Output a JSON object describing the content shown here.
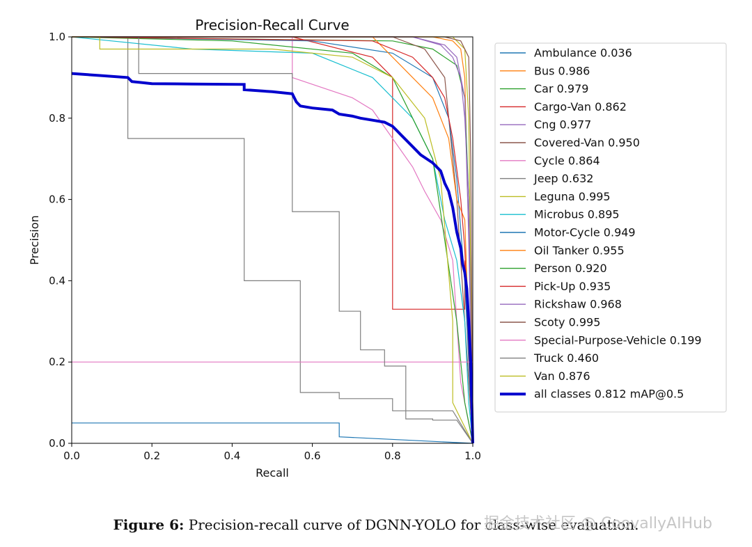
{
  "caption": {
    "label": "Figure 6:",
    "text": "Precision-recall curve of DGNN-YOLO for class-wise evaluation."
  },
  "watermark": "掘金技术社区 @ CoovallyAIHub",
  "chart_data": {
    "type": "line",
    "title": "Precision-Recall Curve",
    "xlabel": "Recall",
    "ylabel": "Precision",
    "xlim": [
      0,
      1
    ],
    "ylim": [
      0,
      1
    ],
    "xticks": [
      "0.0",
      "0.2",
      "0.4",
      "0.6",
      "0.8",
      "1.0"
    ],
    "yticks": [
      "0.0",
      "0.2",
      "0.4",
      "0.6",
      "0.8",
      "1.0"
    ],
    "legend_position": "outside-right",
    "series": [
      {
        "name": "Ambulance 0.036",
        "color": "#1f77b4",
        "points": [
          [
            0,
            0.05
          ],
          [
            0.667,
            0.05
          ],
          [
            0.667,
            0.016
          ],
          [
            1,
            0
          ]
        ]
      },
      {
        "name": "Bus 0.986",
        "color": "#ff7f0e",
        "points": [
          [
            0,
            1
          ],
          [
            0.9,
            1
          ],
          [
            0.95,
            0.99
          ],
          [
            0.97,
            0.97
          ],
          [
            0.98,
            0.9
          ],
          [
            0.985,
            0.7
          ],
          [
            0.99,
            0.6
          ],
          [
            1,
            0
          ]
        ]
      },
      {
        "name": "Car 0.979",
        "color": "#2ca02c",
        "points": [
          [
            0,
            1
          ],
          [
            0.8,
            0.99
          ],
          [
            0.9,
            0.97
          ],
          [
            0.96,
            0.93
          ],
          [
            0.98,
            0.85
          ],
          [
            0.99,
            0.6
          ],
          [
            0.995,
            0.3
          ],
          [
            1,
            0
          ]
        ]
      },
      {
        "name": "Cargo-Van 0.862",
        "color": "#d62728",
        "points": [
          [
            0,
            1
          ],
          [
            0.55,
            1
          ],
          [
            0.75,
            0.95
          ],
          [
            0.8,
            0.9
          ],
          [
            0.8,
            0.33
          ],
          [
            0.98,
            0.33
          ],
          [
            0.98,
            0.45
          ],
          [
            1,
            0
          ]
        ]
      },
      {
        "name": "Cng 0.977",
        "color": "#9467bd",
        "points": [
          [
            0,
            1
          ],
          [
            0.85,
            1
          ],
          [
            0.93,
            0.98
          ],
          [
            0.96,
            0.95
          ],
          [
            0.98,
            0.85
          ],
          [
            0.99,
            0.5
          ],
          [
            1,
            0
          ]
        ]
      },
      {
        "name": "Covered-Van 0.950",
        "color": "#8c564b",
        "points": [
          [
            0,
            1
          ],
          [
            0.8,
            1
          ],
          [
            0.88,
            0.97
          ],
          [
            0.93,
            0.9
          ],
          [
            0.96,
            0.6
          ],
          [
            0.97,
            0.45
          ],
          [
            0.98,
            0.3
          ],
          [
            1,
            0
          ]
        ]
      },
      {
        "name": "Cycle 0.864",
        "color": "#e377c2",
        "points": [
          [
            0,
            1
          ],
          [
            0.55,
            1
          ],
          [
            0.55,
            0.9
          ],
          [
            0.7,
            0.85
          ],
          [
            0.75,
            0.82
          ],
          [
            0.8,
            0.75
          ],
          [
            0.85,
            0.68
          ],
          [
            0.88,
            0.62
          ],
          [
            0.92,
            0.55
          ],
          [
            0.95,
            0.45
          ],
          [
            0.97,
            0.15
          ],
          [
            1,
            0
          ]
        ]
      },
      {
        "name": "Jeep 0.632",
        "color": "#7f7f7f",
        "points": [
          [
            0,
            1
          ],
          [
            0.14,
            1
          ],
          [
            0.14,
            0.75
          ],
          [
            0.43,
            0.75
          ],
          [
            0.43,
            0.4
          ],
          [
            0.57,
            0.4
          ],
          [
            0.57,
            0.125
          ],
          [
            0.667,
            0.125
          ],
          [
            0.667,
            0.11
          ],
          [
            0.8,
            0.11
          ],
          [
            0.8,
            0.08
          ],
          [
            0.95,
            0.08
          ],
          [
            1,
            0
          ]
        ]
      },
      {
        "name": "Leguna 0.995",
        "color": "#bcbd22",
        "points": [
          [
            0,
            1
          ],
          [
            0.95,
            1
          ],
          [
            0.98,
            0.97
          ],
          [
            0.99,
            0.8
          ],
          [
            0.995,
            0.4
          ],
          [
            1,
            0
          ]
        ]
      },
      {
        "name": "Microbus 0.895",
        "color": "#17becf",
        "points": [
          [
            0,
            1
          ],
          [
            0.3,
            0.97
          ],
          [
            0.6,
            0.96
          ],
          [
            0.75,
            0.9
          ],
          [
            0.85,
            0.8
          ],
          [
            0.9,
            0.7
          ],
          [
            0.93,
            0.55
          ],
          [
            0.96,
            0.45
          ],
          [
            0.98,
            0.3
          ],
          [
            0.99,
            0.1
          ],
          [
            1,
            0
          ]
        ]
      },
      {
        "name": "Motor-Cycle 0.949",
        "color": "#1f77b4",
        "points": [
          [
            0,
            1
          ],
          [
            0.6,
            0.99
          ],
          [
            0.8,
            0.96
          ],
          [
            0.9,
            0.9
          ],
          [
            0.94,
            0.8
          ],
          [
            0.96,
            0.65
          ],
          [
            0.98,
            0.4
          ],
          [
            0.99,
            0.2
          ],
          [
            1,
            0
          ]
        ]
      },
      {
        "name": "Oil Tanker 0.955",
        "color": "#ff7f0e",
        "points": [
          [
            0,
            1
          ],
          [
            0.75,
            1
          ],
          [
            0.8,
            0.95
          ],
          [
            0.85,
            0.9
          ],
          [
            0.9,
            0.85
          ],
          [
            0.94,
            0.75
          ],
          [
            0.96,
            0.6
          ],
          [
            0.98,
            0.55
          ],
          [
            1,
            0
          ]
        ]
      },
      {
        "name": "Person 0.920",
        "color": "#2ca02c",
        "points": [
          [
            0,
            1
          ],
          [
            0.4,
            0.99
          ],
          [
            0.7,
            0.96
          ],
          [
            0.8,
            0.9
          ],
          [
            0.85,
            0.8
          ],
          [
            0.9,
            0.7
          ],
          [
            0.93,
            0.5
          ],
          [
            0.96,
            0.3
          ],
          [
            0.98,
            0.1
          ],
          [
            1,
            0
          ]
        ]
      },
      {
        "name": "Pick-Up 0.935",
        "color": "#d62728",
        "points": [
          [
            0,
            1
          ],
          [
            0.75,
            0.99
          ],
          [
            0.85,
            0.95
          ],
          [
            0.9,
            0.9
          ],
          [
            0.93,
            0.85
          ],
          [
            0.95,
            0.75
          ],
          [
            0.97,
            0.6
          ],
          [
            0.98,
            0.48
          ],
          [
            1,
            0
          ]
        ]
      },
      {
        "name": "Rickshaw 0.968",
        "color": "#9467bd",
        "points": [
          [
            0,
            1
          ],
          [
            0.85,
            1
          ],
          [
            0.92,
            0.98
          ],
          [
            0.95,
            0.95
          ],
          [
            0.97,
            0.9
          ],
          [
            0.98,
            0.8
          ],
          [
            0.99,
            0.6
          ],
          [
            1,
            0
          ]
        ]
      },
      {
        "name": "Scoty 0.995",
        "color": "#8c564b",
        "points": [
          [
            0,
            1
          ],
          [
            0.93,
            1
          ],
          [
            0.97,
            0.99
          ],
          [
            0.99,
            0.95
          ],
          [
            0.995,
            0.7
          ],
          [
            1,
            0
          ]
        ]
      },
      {
        "name": "Special-Purpose-Vehicle 0.199",
        "color": "#e377c2",
        "points": [
          [
            0,
            0.2
          ],
          [
            1,
            0.2
          ]
        ]
      },
      {
        "name": "Truck 0.460",
        "color": "#7f7f7f",
        "points": [
          [
            0,
            1
          ],
          [
            0.167,
            1
          ],
          [
            0.167,
            0.91
          ],
          [
            0.55,
            0.91
          ],
          [
            0.55,
            0.57
          ],
          [
            0.667,
            0.57
          ],
          [
            0.667,
            0.325
          ],
          [
            0.72,
            0.325
          ],
          [
            0.72,
            0.23
          ],
          [
            0.78,
            0.23
          ],
          [
            0.78,
            0.19
          ],
          [
            0.833,
            0.19
          ],
          [
            0.833,
            0.06
          ],
          [
            0.9,
            0.06
          ],
          [
            0.9,
            0.057
          ],
          [
            0.96,
            0.057
          ],
          [
            1,
            0
          ]
        ]
      },
      {
        "name": "Van 0.876",
        "color": "#bcbd22",
        "points": [
          [
            0,
            1
          ],
          [
            0.07,
            1
          ],
          [
            0.07,
            0.97
          ],
          [
            0.5,
            0.97
          ],
          [
            0.7,
            0.95
          ],
          [
            0.8,
            0.9
          ],
          [
            0.88,
            0.8
          ],
          [
            0.92,
            0.65
          ],
          [
            0.95,
            0.3
          ],
          [
            0.95,
            0.1
          ],
          [
            1,
            0
          ]
        ]
      },
      {
        "name": "all classes 0.812 mAP@0.5",
        "color": "#0000cd",
        "bold": true,
        "points": [
          [
            0,
            0.91
          ],
          [
            0.07,
            0.905
          ],
          [
            0.14,
            0.9
          ],
          [
            0.15,
            0.89
          ],
          [
            0.17,
            0.888
          ],
          [
            0.2,
            0.885
          ],
          [
            0.3,
            0.884
          ],
          [
            0.43,
            0.883
          ],
          [
            0.43,
            0.87
          ],
          [
            0.5,
            0.865
          ],
          [
            0.55,
            0.86
          ],
          [
            0.56,
            0.84
          ],
          [
            0.57,
            0.83
          ],
          [
            0.6,
            0.825
          ],
          [
            0.65,
            0.82
          ],
          [
            0.667,
            0.81
          ],
          [
            0.7,
            0.805
          ],
          [
            0.72,
            0.8
          ],
          [
            0.75,
            0.795
          ],
          [
            0.78,
            0.79
          ],
          [
            0.8,
            0.78
          ],
          [
            0.81,
            0.77
          ],
          [
            0.82,
            0.76
          ],
          [
            0.85,
            0.73
          ],
          [
            0.87,
            0.71
          ],
          [
            0.9,
            0.69
          ],
          [
            0.92,
            0.67
          ],
          [
            0.93,
            0.64
          ],
          [
            0.94,
            0.62
          ],
          [
            0.95,
            0.58
          ],
          [
            0.96,
            0.52
          ],
          [
            0.97,
            0.48
          ],
          [
            0.975,
            0.44
          ],
          [
            0.98,
            0.42
          ],
          [
            0.985,
            0.38
          ],
          [
            0.99,
            0.3
          ],
          [
            0.995,
            0.2
          ],
          [
            1,
            0
          ]
        ]
      }
    ]
  }
}
